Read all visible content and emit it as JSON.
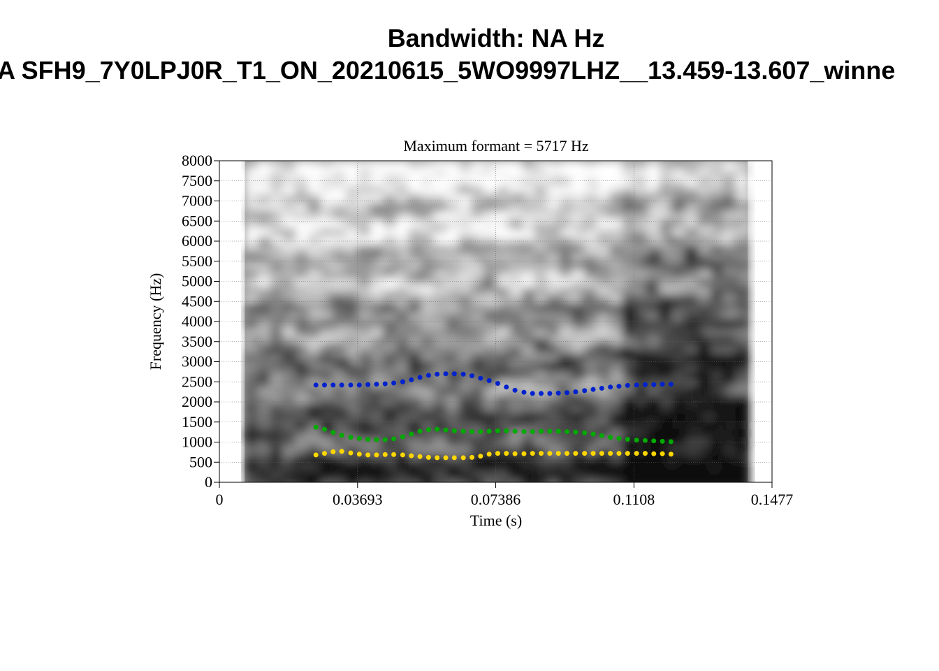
{
  "header": {
    "title": "Bandwidth: NA Hz",
    "subtitle": "A SFH9_7Y0LPJ0R_T1_ON_20210615_5WO9997LHZ__13.459-13.607_winne"
  },
  "chart_data": {
    "type": "scatter",
    "title": "Maximum formant  =  5717 Hz",
    "xlabel": "Time (s)",
    "ylabel": "Frequency (Hz)",
    "xlim": [
      0,
      0.1477
    ],
    "ylim": [
      0,
      8000
    ],
    "x_ticks": [
      "0",
      "0.03693",
      "0.07386",
      "0.1108",
      "0.1477"
    ],
    "y_ticks": [
      "0",
      "500",
      "1000",
      "1500",
      "2000",
      "2500",
      "3000",
      "3500",
      "4000",
      "4500",
      "5000",
      "5500",
      "6000",
      "6500",
      "7000",
      "7500",
      "8000"
    ],
    "grid": true,
    "background": "spectrogram (grayscale) spanning 0.0068-0.1412 s",
    "series": [
      {
        "color": "#ffd700",
        "x": [
          0.0258,
          0.0281,
          0.0304,
          0.0327,
          0.0351,
          0.0374,
          0.0397,
          0.042,
          0.0443,
          0.0466,
          0.049,
          0.0513,
          0.0536,
          0.0559,
          0.0582,
          0.0605,
          0.0628,
          0.0652,
          0.0675,
          0.0698,
          0.0721,
          0.0744,
          0.0767,
          0.079,
          0.0814,
          0.0837,
          0.086,
          0.0883,
          0.0906,
          0.0929,
          0.0952,
          0.0976,
          0.0999,
          0.1022,
          0.1045,
          0.1068,
          0.1091,
          0.1115,
          0.1138,
          0.1161,
          0.1184,
          0.1207
        ],
        "y": [
          680,
          720,
          760,
          770,
          730,
          700,
          680,
          680,
          690,
          690,
          680,
          660,
          640,
          620,
          610,
          610,
          610,
          610,
          620,
          650,
          700,
          720,
          720,
          710,
          710,
          720,
          720,
          720,
          720,
          720,
          720,
          720,
          720,
          720,
          720,
          720,
          720,
          720,
          720,
          710,
          710,
          700
        ]
      },
      {
        "color": "#00aa00",
        "x": [
          0.0258,
          0.0281,
          0.0304,
          0.0327,
          0.0351,
          0.0374,
          0.0397,
          0.042,
          0.0443,
          0.0466,
          0.049,
          0.0513,
          0.0536,
          0.0559,
          0.0582,
          0.0605,
          0.0628,
          0.0652,
          0.0675,
          0.0698,
          0.0721,
          0.0744,
          0.0767,
          0.079,
          0.0814,
          0.0837,
          0.086,
          0.0883,
          0.0906,
          0.0929,
          0.0952,
          0.0976,
          0.0999,
          0.1022,
          0.1045,
          0.1068,
          0.1091,
          0.1115,
          0.1138,
          0.1161,
          0.1184,
          0.1207
        ],
        "y": [
          1370,
          1320,
          1240,
          1170,
          1120,
          1090,
          1070,
          1060,
          1060,
          1080,
          1130,
          1200,
          1270,
          1310,
          1320,
          1300,
          1280,
          1270,
          1260,
          1260,
          1270,
          1280,
          1280,
          1270,
          1260,
          1260,
          1270,
          1270,
          1270,
          1260,
          1250,
          1230,
          1200,
          1160,
          1120,
          1090,
          1070,
          1050,
          1040,
          1030,
          1020,
          1010
        ]
      },
      {
        "color": "#0022cc",
        "x": [
          0.0258,
          0.0281,
          0.0304,
          0.0327,
          0.0351,
          0.0374,
          0.0397,
          0.042,
          0.0443,
          0.0466,
          0.049,
          0.0513,
          0.0536,
          0.0559,
          0.0582,
          0.0605,
          0.0628,
          0.0652,
          0.0675,
          0.0698,
          0.0721,
          0.0744,
          0.0767,
          0.079,
          0.0814,
          0.0837,
          0.086,
          0.0883,
          0.0906,
          0.0929,
          0.0952,
          0.0976,
          0.0999,
          0.1022,
          0.1045,
          0.1068,
          0.1091,
          0.1115,
          0.1138,
          0.1161,
          0.1184,
          0.1207
        ],
        "y": [
          2420,
          2420,
          2420,
          2420,
          2420,
          2420,
          2430,
          2440,
          2450,
          2470,
          2500,
          2550,
          2610,
          2660,
          2690,
          2700,
          2700,
          2690,
          2650,
          2590,
          2530,
          2460,
          2370,
          2290,
          2240,
          2210,
          2210,
          2210,
          2220,
          2230,
          2250,
          2280,
          2310,
          2340,
          2370,
          2390,
          2410,
          2420,
          2430,
          2430,
          2440,
          2440
        ]
      }
    ]
  }
}
